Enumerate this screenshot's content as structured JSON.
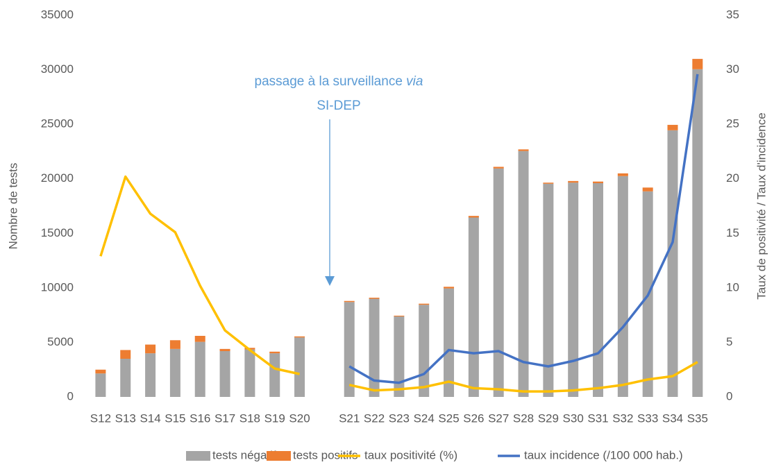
{
  "chart_data": {
    "type": "combo",
    "y_label": "Nombre de tests",
    "y2_label": "Taux de positivité / Taux d'incidence",
    "annotation": {
      "text": "passage à la surveillance",
      "emphasis": "via",
      "line2": "SI-DEP"
    },
    "categories": [
      "S12",
      "S13",
      "S14",
      "S15",
      "S16",
      "S17",
      "S18",
      "S19",
      "S20",
      null,
      "S21",
      "S22",
      "S23",
      "S24",
      "S25",
      "S26",
      "S27",
      "S28",
      "S29",
      "S30",
      "S31",
      "S32",
      "S33",
      "S34",
      "S35"
    ],
    "ylim": [
      0,
      35000
    ],
    "yticks": [
      0,
      5000,
      10000,
      15000,
      20000,
      25000,
      30000,
      35000
    ],
    "y2lim": [
      0,
      35
    ],
    "y2ticks": [
      0,
      5,
      10,
      15,
      20,
      25,
      30,
      35
    ],
    "grid": false,
    "series": [
      {
        "name": "tests négatifs",
        "type": "bar",
        "color": "#a5a5a5",
        "values": [
          2150,
          3500,
          4000,
          4400,
          5050,
          4200,
          4350,
          4000,
          5450,
          null,
          8700,
          9000,
          7380,
          8450,
          9950,
          16450,
          20950,
          22550,
          19550,
          19650,
          19600,
          20250,
          18850,
          24450,
          30050
        ]
      },
      {
        "name": "tests positifs",
        "type": "bar",
        "color": "#ed7d31",
        "values": [
          350,
          800,
          800,
          800,
          550,
          200,
          150,
          150,
          100,
          null,
          100,
          100,
          70,
          100,
          150,
          150,
          150,
          150,
          100,
          150,
          150,
          250,
          350,
          500,
          950
        ]
      },
      {
        "name": "taux positivité (%)",
        "type": "line",
        "axis": "y2",
        "color": "#ffc000",
        "values": [
          12.9,
          20.2,
          16.8,
          15.1,
          10.2,
          6.1,
          4.3,
          2.6,
          2.1,
          null,
          1.1,
          0.6,
          0.7,
          0.9,
          1.4,
          0.8,
          0.7,
          0.5,
          0.5,
          0.6,
          0.8,
          1.1,
          1.6,
          1.9,
          3.2
        ]
      },
      {
        "name": "taux incidence (/100 000 hab.)",
        "type": "line",
        "axis": "y2",
        "color": "#4472c4",
        "values": [
          null,
          null,
          null,
          null,
          null,
          null,
          null,
          null,
          null,
          null,
          2.8,
          1.5,
          1.3,
          2.1,
          4.3,
          4.0,
          4.2,
          3.2,
          2.8,
          3.3,
          4.0,
          6.4,
          9.3,
          14.2,
          29.6
        ]
      }
    ]
  }
}
